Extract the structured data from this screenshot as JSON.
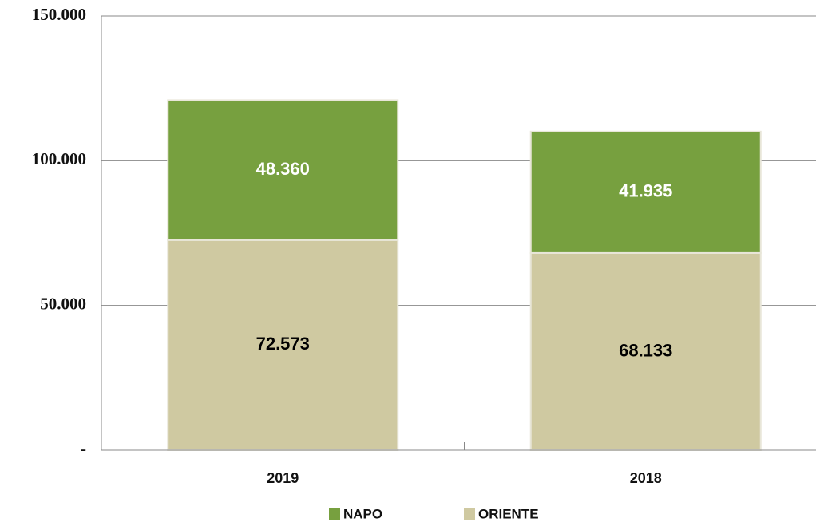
{
  "chart_data": {
    "type": "stacked_bar",
    "categories": [
      "2019",
      "2018"
    ],
    "series": [
      {
        "name": "ORIENTE",
        "color": "#cfc9a1",
        "values": [
          72573,
          68133
        ],
        "value_labels": [
          "72.573",
          "68.133"
        ]
      },
      {
        "name": "NAPO",
        "color": "#77a03f",
        "values": [
          48360,
          41935
        ],
        "value_labels": [
          "48.360",
          "41.935"
        ]
      }
    ],
    "ylim": [
      0,
      150000
    ],
    "yticks": [
      {
        "value": 0,
        "label": "-"
      },
      {
        "value": 50000,
        "label": "50.000"
      },
      {
        "value": 100000,
        "label": "100.000"
      },
      {
        "value": 150000,
        "label": "150.000"
      }
    ],
    "grid": true,
    "legend": "bottom"
  }
}
